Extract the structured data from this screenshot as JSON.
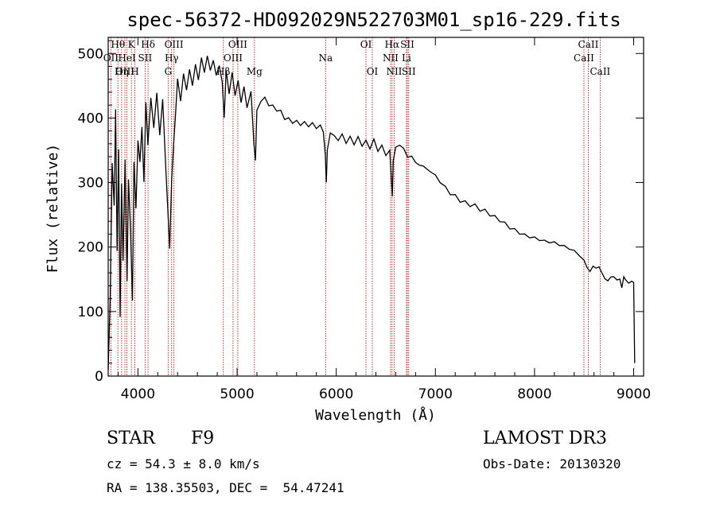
{
  "chart_data": {
    "type": "line",
    "title": "spec-56372-HD092029N522703M01_sp16-229.fits",
    "xlabel": "Wavelength (Å)",
    "ylabel": "Flux (relative)",
    "xlim": [
      3700,
      9100
    ],
    "ylim": [
      0,
      525
    ],
    "xticks": [
      4000,
      5000,
      6000,
      7000,
      8000,
      9000
    ],
    "yticks": [
      0,
      100,
      200,
      300,
      400,
      500
    ],
    "series": [
      {
        "name": "flux",
        "points": [
          [
            3700,
            10
          ],
          [
            3720,
            120
          ],
          [
            3740,
            330
          ],
          [
            3760,
            260
          ],
          [
            3775,
            410
          ],
          [
            3790,
            190
          ],
          [
            3805,
            350
          ],
          [
            3820,
            90
          ],
          [
            3835,
            300
          ],
          [
            3850,
            180
          ],
          [
            3870,
            340
          ],
          [
            3890,
            150
          ],
          [
            3905,
            310
          ],
          [
            3925,
            230
          ],
          [
            3945,
            120
          ],
          [
            3960,
            330
          ],
          [
            3980,
            260
          ],
          [
            4000,
            360
          ],
          [
            4020,
            330
          ],
          [
            4040,
            380
          ],
          [
            4060,
            300
          ],
          [
            4080,
            420
          ],
          [
            4100,
            360
          ],
          [
            4130,
            430
          ],
          [
            4160,
            390
          ],
          [
            4190,
            440
          ],
          [
            4220,
            380
          ],
          [
            4250,
            430
          ],
          [
            4280,
            330
          ],
          [
            4300,
            260
          ],
          [
            4320,
            200
          ],
          [
            4340,
            300
          ],
          [
            4360,
            360
          ],
          [
            4380,
            400
          ],
          [
            4400,
            460
          ],
          [
            4430,
            420
          ],
          [
            4460,
            470
          ],
          [
            4490,
            440
          ],
          [
            4520,
            480
          ],
          [
            4550,
            450
          ],
          [
            4580,
            490
          ],
          [
            4610,
            460
          ],
          [
            4640,
            500
          ],
          [
            4670,
            470
          ],
          [
            4700,
            500
          ],
          [
            4730,
            470
          ],
          [
            4760,
            490
          ],
          [
            4790,
            460
          ],
          [
            4820,
            480
          ],
          [
            4850,
            450
          ],
          [
            4870,
            400
          ],
          [
            4890,
            470
          ],
          [
            4920,
            440
          ],
          [
            4950,
            470
          ],
          [
            4980,
            440
          ],
          [
            5010,
            460
          ],
          [
            5040,
            430
          ],
          [
            5070,
            450
          ],
          [
            5100,
            420
          ],
          [
            5140,
            440
          ],
          [
            5170,
            360
          ],
          [
            5185,
            330
          ],
          [
            5200,
            410
          ],
          [
            5240,
            420
          ],
          [
            5280,
            430
          ],
          [
            5320,
            415
          ],
          [
            5360,
            420
          ],
          [
            5400,
            410
          ],
          [
            5440,
            415
          ],
          [
            5480,
            400
          ],
          [
            5520,
            405
          ],
          [
            5560,
            395
          ],
          [
            5600,
            400
          ],
          [
            5640,
            390
          ],
          [
            5680,
            395
          ],
          [
            5720,
            385
          ],
          [
            5760,
            390
          ],
          [
            5800,
            380
          ],
          [
            5840,
            385
          ],
          [
            5870,
            375
          ],
          [
            5890,
            340
          ],
          [
            5900,
            300
          ],
          [
            5910,
            350
          ],
          [
            5940,
            380
          ],
          [
            5980,
            375
          ],
          [
            6020,
            370
          ],
          [
            6060,
            378
          ],
          [
            6100,
            365
          ],
          [
            6140,
            372
          ],
          [
            6180,
            360
          ],
          [
            6220,
            368
          ],
          [
            6260,
            355
          ],
          [
            6300,
            360
          ],
          [
            6340,
            350
          ],
          [
            6380,
            362
          ],
          [
            6420,
            348
          ],
          [
            6460,
            355
          ],
          [
            6500,
            345
          ],
          [
            6540,
            350
          ],
          [
            6560,
            300
          ],
          [
            6565,
            280
          ],
          [
            6575,
            340
          ],
          [
            6600,
            355
          ],
          [
            6640,
            362
          ],
          [
            6680,
            350
          ],
          [
            6720,
            340
          ],
          [
            6760,
            335
          ],
          [
            6800,
            330
          ],
          [
            6840,
            320
          ],
          [
            6880,
            325
          ],
          [
            6920,
            315
          ],
          [
            6960,
            318
          ],
          [
            7000,
            310
          ],
          [
            7050,
            305
          ],
          [
            7100,
            295
          ],
          [
            7150,
            288
          ],
          [
            7200,
            282
          ],
          [
            7250,
            275
          ],
          [
            7300,
            270
          ],
          [
            7350,
            265
          ],
          [
            7400,
            262
          ],
          [
            7450,
            255
          ],
          [
            7500,
            252
          ],
          [
            7550,
            247
          ],
          [
            7600,
            243
          ],
          [
            7650,
            240
          ],
          [
            7700,
            236
          ],
          [
            7750,
            232
          ],
          [
            7800,
            229
          ],
          [
            7850,
            226
          ],
          [
            7900,
            222
          ],
          [
            7950,
            220
          ],
          [
            8000,
            216
          ],
          [
            8050,
            213
          ],
          [
            8100,
            208
          ],
          [
            8150,
            206
          ],
          [
            8200,
            203
          ],
          [
            8250,
            200
          ],
          [
            8300,
            197
          ],
          [
            8350,
            195
          ],
          [
            8400,
            192
          ],
          [
            8450,
            188
          ],
          [
            8500,
            180
          ],
          [
            8530,
            172
          ],
          [
            8560,
            165
          ],
          [
            8590,
            175
          ],
          [
            8620,
            170
          ],
          [
            8650,
            172
          ],
          [
            8680,
            160
          ],
          [
            8710,
            150
          ],
          [
            8740,
            145
          ],
          [
            8770,
            150
          ],
          [
            8800,
            150
          ],
          [
            8830,
            145
          ],
          [
            8860,
            148
          ],
          [
            8880,
            135
          ],
          [
            8900,
            155
          ],
          [
            8920,
            150
          ],
          [
            8950,
            148
          ],
          [
            8980,
            150
          ],
          [
            9000,
            145
          ],
          [
            9010,
            20
          ]
        ]
      }
    ],
    "emission_lines": [
      {
        "label": "Hθ",
        "wavelength": 3798,
        "row": 0
      },
      {
        "label": "OII",
        "wavelength": 3727,
        "row": 1
      },
      {
        "label": "OIII",
        "wavelength": 3869,
        "row": 2
      },
      {
        "label": "K",
        "wavelength": 3934,
        "row": 0
      },
      {
        "label": "HeI",
        "wavelength": 3889,
        "row": 1
      },
      {
        "label": "Hη",
        "wavelength": 3835,
        "row": 2
      },
      {
        "label": "Hδ",
        "wavelength": 4102,
        "row": 0
      },
      {
        "label": "SII",
        "wavelength": 4072,
        "row": 1
      },
      {
        "label": "H",
        "wavelength": 3969,
        "row": 2
      },
      {
        "label": "OIII",
        "wavelength": 4363,
        "row": 0
      },
      {
        "label": "Hγ",
        "wavelength": 4340,
        "row": 1
      },
      {
        "label": "G",
        "wavelength": 4305,
        "row": 2
      },
      {
        "label": "OIII",
        "wavelength": 5007,
        "row": 0
      },
      {
        "label": "OIII",
        "wavelength": 4959,
        "row": 1
      },
      {
        "label": "Hβ",
        "wavelength": 4861,
        "row": 2
      },
      {
        "label": "Mg",
        "wavelength": 5175,
        "row": 2
      },
      {
        "label": "Na",
        "wavelength": 5893,
        "row": 1
      },
      {
        "label": "OI",
        "wavelength": 6300,
        "row": 0
      },
      {
        "label": "OI",
        "wavelength": 6364,
        "row": 2
      },
      {
        "label": "Hα",
        "wavelength": 6563,
        "row": 0
      },
      {
        "label": "NII",
        "wavelength": 6548,
        "row": 1
      },
      {
        "label": "NII",
        "wavelength": 6584,
        "row": 2
      },
      {
        "label": "SII",
        "wavelength": 6717,
        "row": 0
      },
      {
        "label": "Li",
        "wavelength": 6708,
        "row": 1
      },
      {
        "label": "SII",
        "wavelength": 6731,
        "row": 2
      },
      {
        "label": "CaII",
        "wavelength": 8542,
        "row": 0
      },
      {
        "label": "CaII",
        "wavelength": 8498,
        "row": 1
      },
      {
        "label": "CaII",
        "wavelength": 8662,
        "row": 2
      }
    ]
  },
  "info": {
    "class_label": "STAR",
    "subclass": "F9",
    "survey": "LAMOST DR3",
    "redshift": "cz = 54.3 ± 8.0 km/s",
    "obs_date": "Obs-Date: 20130320",
    "coords": "RA = 138.35503, DEC =  54.47241"
  }
}
